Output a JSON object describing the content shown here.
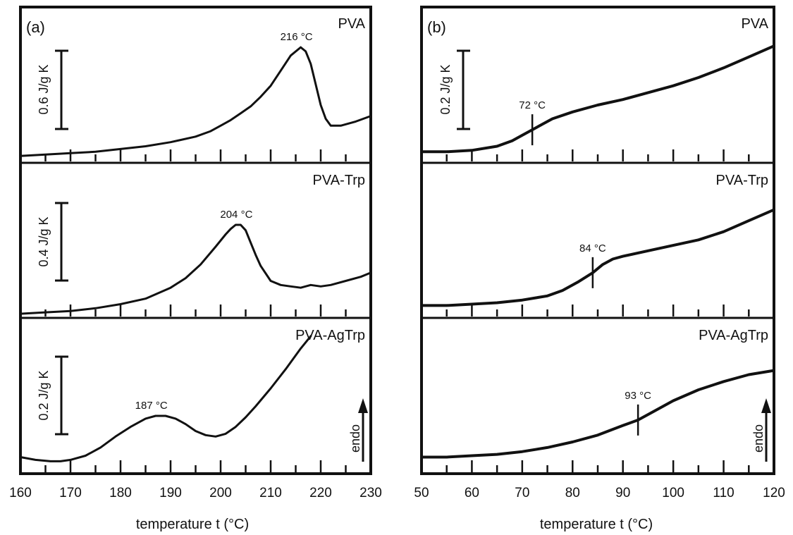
{
  "colors": {
    "line": "#111111",
    "background": "#ffffff"
  },
  "chart_data": [
    {
      "type": "line",
      "panel_label": "(a)",
      "xlabel": "temperature t (°C)",
      "xlim": [
        160,
        230
      ],
      "x_major_ticks": [
        160,
        170,
        180,
        190,
        200,
        210,
        220,
        230
      ],
      "arrow_label": "endo",
      "subplots": [
        {
          "name": "PVA",
          "scale_bar": "0.6 J/g K",
          "scale_value": 0.6,
          "peak_label": "216 °C",
          "peak_x": 216,
          "ylim": [
            0,
            1.0
          ],
          "x": [
            160,
            165,
            170,
            175,
            180,
            185,
            190,
            195,
            198,
            200,
            202,
            204,
            206,
            208,
            210,
            212,
            214,
            216,
            217,
            218,
            219,
            220,
            221,
            222,
            224,
            227,
            230
          ],
          "y": [
            0.03,
            0.04,
            0.05,
            0.06,
            0.08,
            0.1,
            0.13,
            0.17,
            0.21,
            0.25,
            0.29,
            0.34,
            0.39,
            0.46,
            0.54,
            0.65,
            0.76,
            0.82,
            0.79,
            0.7,
            0.55,
            0.4,
            0.3,
            0.25,
            0.25,
            0.28,
            0.32
          ]
        },
        {
          "name": "PVA-Trp",
          "scale_bar": "0.4 J/g K",
          "scale_value": 0.4,
          "peak_label": "204 °C",
          "peak_x": 204,
          "ylim": [
            0,
            1.0
          ],
          "x": [
            160,
            165,
            170,
            175,
            180,
            185,
            190,
            193,
            196,
            199,
            201,
            202,
            203,
            204,
            205,
            206,
            207,
            208,
            210,
            212,
            214,
            216,
            218,
            220,
            222,
            225,
            228,
            230
          ],
          "y": [
            0.01,
            0.02,
            0.03,
            0.05,
            0.08,
            0.12,
            0.2,
            0.27,
            0.37,
            0.5,
            0.59,
            0.63,
            0.66,
            0.66,
            0.62,
            0.53,
            0.44,
            0.36,
            0.25,
            0.22,
            0.21,
            0.2,
            0.22,
            0.21,
            0.22,
            0.25,
            0.28,
            0.31
          ]
        },
        {
          "name": "PVA-AgTrp",
          "scale_bar": "0.2 J/g K",
          "scale_value": 0.2,
          "peak_label": "187 °C",
          "peak_x": 187,
          "ylim": [
            0,
            1.0
          ],
          "x": [
            160,
            163,
            166,
            168,
            170,
            173,
            176,
            179,
            182,
            185,
            187,
            189,
            191,
            193,
            195,
            197,
            199,
            201,
            203,
            205,
            207,
            210,
            213,
            216,
            218
          ],
          "y": [
            0.1,
            0.08,
            0.07,
            0.07,
            0.08,
            0.11,
            0.17,
            0.25,
            0.32,
            0.38,
            0.4,
            0.4,
            0.38,
            0.34,
            0.29,
            0.26,
            0.25,
            0.27,
            0.32,
            0.39,
            0.47,
            0.6,
            0.74,
            0.89,
            0.98
          ]
        }
      ]
    },
    {
      "type": "line",
      "panel_label": "(b)",
      "xlabel": "temperature t (°C)",
      "xlim": [
        50,
        120
      ],
      "x_major_ticks": [
        50,
        60,
        70,
        80,
        90,
        100,
        110,
        120
      ],
      "arrow_label": "endo",
      "subplots": [
        {
          "name": "PVA",
          "scale_bar": "0.2 J/g K",
          "scale_value": 0.2,
          "transition_label": "72 °C",
          "transition_x": 72,
          "ylim": [
            0,
            1.0
          ],
          "x": [
            50,
            55,
            60,
            65,
            68,
            70,
            72,
            74,
            76,
            80,
            85,
            90,
            95,
            100,
            105,
            110,
            115,
            120
          ],
          "y": [
            0.06,
            0.06,
            0.07,
            0.1,
            0.14,
            0.18,
            0.22,
            0.26,
            0.3,
            0.35,
            0.4,
            0.44,
            0.49,
            0.54,
            0.6,
            0.67,
            0.75,
            0.83
          ]
        },
        {
          "name": "PVA-Trp",
          "scale_bar": "",
          "transition_label": "84 °C",
          "transition_x": 84,
          "ylim": [
            0,
            1.0
          ],
          "x": [
            50,
            55,
            60,
            65,
            70,
            75,
            78,
            81,
            84,
            86,
            88,
            90,
            95,
            100,
            105,
            110,
            115,
            120
          ],
          "y": [
            0.07,
            0.07,
            0.08,
            0.09,
            0.11,
            0.14,
            0.18,
            0.24,
            0.31,
            0.37,
            0.41,
            0.43,
            0.47,
            0.51,
            0.55,
            0.61,
            0.69,
            0.77
          ]
        },
        {
          "name": "PVA-AgTrp",
          "scale_bar": "",
          "transition_label": "93 °C",
          "transition_x": 93,
          "ylim": [
            0,
            1.0
          ],
          "x": [
            50,
            55,
            60,
            65,
            70,
            75,
            80,
            85,
            90,
            93,
            96,
            100,
            105,
            110,
            115,
            120
          ],
          "y": [
            0.1,
            0.1,
            0.11,
            0.12,
            0.14,
            0.17,
            0.21,
            0.26,
            0.33,
            0.37,
            0.43,
            0.51,
            0.59,
            0.65,
            0.7,
            0.73
          ]
        }
      ]
    }
  ]
}
